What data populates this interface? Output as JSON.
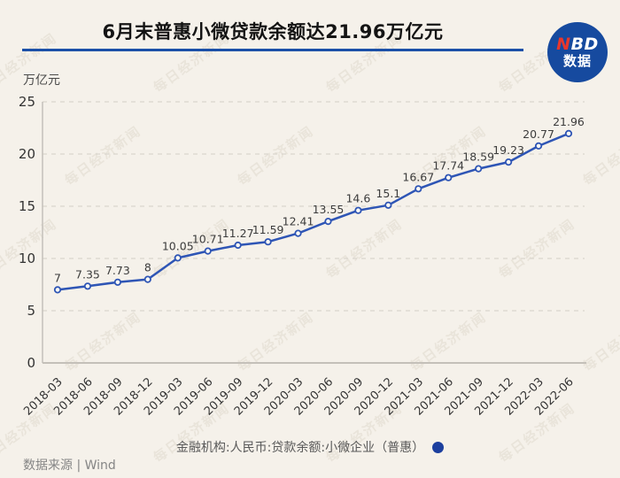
{
  "header": {
    "title": "6月末普惠小微贷款余额达21.96万亿元",
    "logo": {
      "line1_red": "N",
      "line1_white": "BD",
      "line2": "数据"
    }
  },
  "chart_data": {
    "type": "line",
    "title": "6月末普惠小微贷款余额达21.96万亿元",
    "unit_label": "万亿元",
    "categories": [
      "2018-03",
      "2018-06",
      "2018-09",
      "2018-12",
      "2019-03",
      "2019-06",
      "2019-09",
      "2019-12",
      "2020-03",
      "2020-06",
      "2020-09",
      "2020-12",
      "2021-03",
      "2021-06",
      "2021-09",
      "2021-12",
      "2022-03",
      "2022-06"
    ],
    "values": [
      7,
      7.35,
      7.73,
      8,
      10.05,
      10.71,
      11.27,
      11.59,
      12.41,
      13.55,
      14.6,
      15.1,
      16.67,
      17.74,
      18.59,
      19.23,
      20.77,
      21.96
    ],
    "series_name": "金融机构:人民币:贷款余额:小微企业（普惠）",
    "ylim": [
      0,
      25
    ],
    "yticks": [
      0,
      5,
      10,
      15,
      20,
      25
    ],
    "grid": "horizontal-dashed",
    "legend_position": "bottom",
    "data_labels": true
  },
  "legend": {
    "label": "金融机构:人民币:贷款余额:小微企业（普惠）"
  },
  "footer": {
    "source": "数据来源 | Wind"
  },
  "watermark": {
    "text": "每日经济新闻"
  },
  "colors": {
    "background": "#f5f1ea",
    "title_rule": "#1b50a8",
    "line": "#2e55b5",
    "marker_fill": "#fbf9f4",
    "legend_dot": "#1c3f9e",
    "logo_bg": "#164a9f",
    "logo_red": "#e8372c",
    "grid": "#d9d5ce",
    "axis": "#c4c0b9",
    "tick_text": "#333333",
    "value_text": "#3c3c3c"
  }
}
